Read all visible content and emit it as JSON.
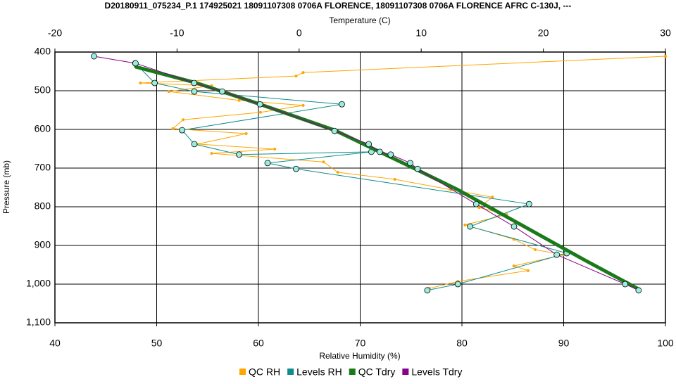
{
  "chart_data": {
    "type": "line",
    "title": "D20180911_075234_P.1 174925021 18091107308 0706A FLORENCE, 18091107308 0706A FLORENCE AFRC C-130J, ---",
    "x_label": "Relative Humidity (%)",
    "x2_label": "Temperature (C)",
    "y_label": "Pressure (mb)",
    "xlim": [
      40,
      100
    ],
    "xticks": [
      40,
      50,
      60,
      70,
      80,
      90,
      100
    ],
    "x2lim": [
      -20,
      30
    ],
    "x2ticks": [
      -20,
      -10,
      0,
      10,
      20,
      30
    ],
    "ylim": [
      400,
      1100
    ],
    "y_inverted": true,
    "yticks": [
      400,
      500,
      600,
      700,
      800,
      900,
      {
        "value": 1000,
        "label": "1,000"
      },
      {
        "value": 1100,
        "label": "1,100"
      }
    ],
    "grid": true,
    "legend": "bottom",
    "series": [
      {
        "name": "QC RH",
        "color": "#ffa500",
        "axis": "x",
        "x": [
          100,
          64.4,
          63.7,
          48.4,
          55.4,
          51.2,
          58.1,
          64.4,
          60.2,
          52.6,
          51.6,
          58.8,
          54,
          61.6,
          55.4,
          66.4,
          67.8,
          73.4,
          78.9,
          83,
          81.7,
          84.4,
          80.3,
          85.1,
          87.2,
          90,
          85.1,
          86.5,
          79.6,
          76.8
        ],
        "values": [
          411,
          453,
          462,
          480,
          487,
          502,
          525,
          538,
          556,
          575,
          598,
          611,
          638,
          651,
          662,
          684,
          711,
          729,
          756,
          775,
          802,
          820,
          847,
          884,
          911,
          924,
          953,
          965,
          993,
          1011
        ]
      },
      {
        "name": "Levels RH",
        "color": "#108c8c",
        "axis": "x",
        "x": [
          47.9,
          49.8,
          53.7,
          68.2,
          52.5,
          53.7,
          58.1,
          71.1,
          60.9,
          63.7,
          86.6,
          80.8,
          90.3,
          79.6,
          76.6
        ],
        "values": [
          429,
          480,
          502,
          535,
          602,
          638,
          665,
          658,
          687,
          702,
          793,
          851,
          920,
          1000,
          1016
        ]
      },
      {
        "name": "QC Tdry",
        "color": "#1a7a1a",
        "axis": "x2",
        "x": [
          -13.4,
          -8.4,
          -3.2,
          2.9,
          9.5,
          13,
          18.2,
          23.4,
          27.7
        ],
        "values": [
          438,
          480,
          535,
          602,
          702,
          756,
          847,
          938,
          1011
        ]
      },
      {
        "name": "Levels Tdry",
        "color": "#8b008b",
        "axis": "x2",
        "x": [
          -16.8,
          -13.4,
          -8.6,
          -6.3,
          -3.2,
          2.9,
          5.7,
          6.6,
          7.5,
          9.1,
          9.7,
          14.5,
          17.6,
          21.1,
          26.7,
          27.8
        ],
        "values": [
          411,
          429,
          480,
          502,
          535,
          604,
          638,
          658,
          665,
          687,
          702,
          793,
          851,
          924,
          1000,
          1016
        ]
      }
    ]
  }
}
